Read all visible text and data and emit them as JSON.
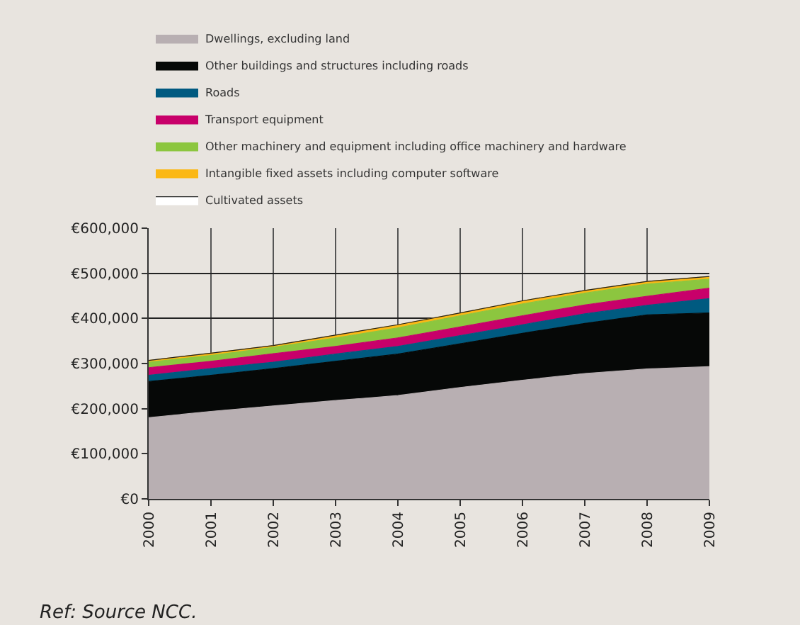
{
  "chart_data": {
    "type": "area",
    "stacked": true,
    "categories": [
      "2000",
      "2001",
      "2002",
      "2003",
      "2004",
      "2005",
      "2006",
      "2007",
      "2008",
      "2009"
    ],
    "series": [
      {
        "name": "Dwellings, excluding land",
        "color": "#b8afb2",
        "values": [
          180000,
          194000,
          206000,
          218000,
          229000,
          247000,
          263000,
          278000,
          288000,
          293000
        ]
      },
      {
        "name": "Other buildings and structures including roads",
        "color": "#060807",
        "values": [
          80000,
          80000,
          83000,
          87000,
          92000,
          97000,
          104000,
          111000,
          120000,
          119000
        ]
      },
      {
        "name": "Roads",
        "color": "#005a80",
        "values": [
          14000,
          15000,
          14000,
          16000,
          17000,
          18000,
          19000,
          21000,
          21000,
          32000
        ]
      },
      {
        "name": "Transport equipment",
        "color": "#c8006a",
        "values": [
          17000,
          16000,
          19000,
          17000,
          19000,
          19000,
          20000,
          20000,
          20000,
          23000
        ]
      },
      {
        "name": "Other machinery and equipment including office machinery and hardware",
        "color": "#8cc63f",
        "values": [
          12000,
          13000,
          14000,
          19000,
          22000,
          25000,
          26000,
          26000,
          27000,
          20000
        ]
      },
      {
        "name": "Intangible fixed assets including computer software",
        "color": "#fbb815",
        "values": [
          4000,
          5000,
          4000,
          6000,
          7000,
          6000,
          7000,
          6000,
          6000,
          6000
        ]
      },
      {
        "name": "Cultivated assets",
        "color": "#ffffff",
        "values": [
          null,
          null,
          null,
          null,
          null,
          null,
          null,
          null,
          null,
          null
        ]
      }
    ],
    "ylim": [
      0,
      600000
    ],
    "yticks": [
      {
        "value": 0,
        "label": "€0"
      },
      {
        "value": 100000,
        "label": "€100,000"
      },
      {
        "value": 200000,
        "label": "€200,000"
      },
      {
        "value": 300000,
        "label": "€300,000"
      },
      {
        "value": 400000,
        "label": "€400,000"
      },
      {
        "value": 500000,
        "label": "€500,000"
      },
      {
        "value": 600000,
        "label": "€600,000"
      }
    ],
    "grid": true,
    "legend": "top",
    "annotations": [
      "Ref: Source NCC."
    ]
  }
}
